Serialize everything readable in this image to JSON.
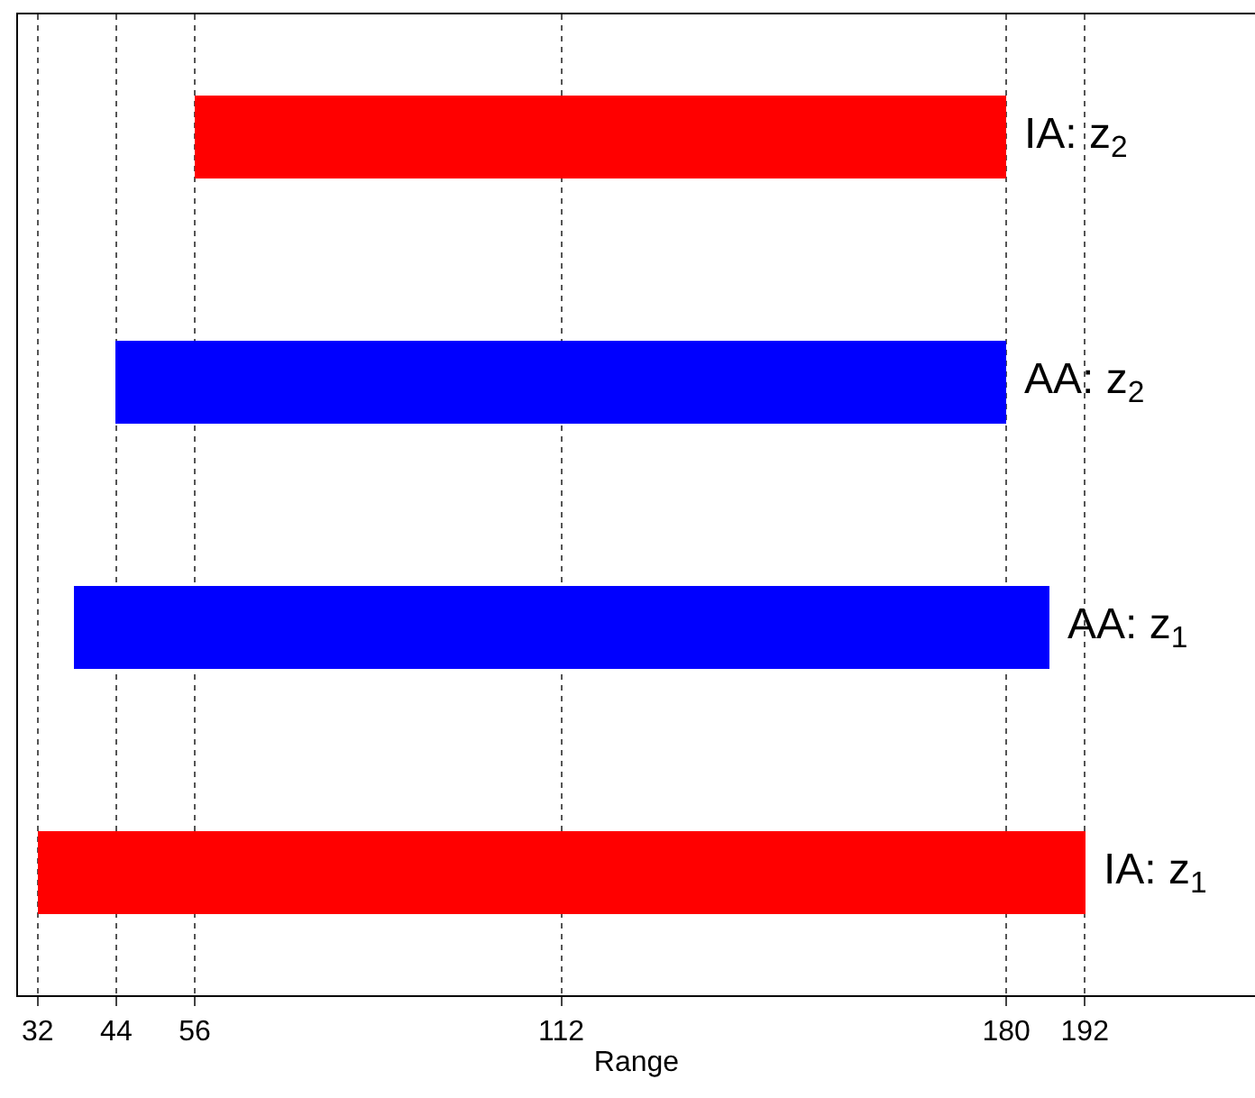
{
  "chart_data": {
    "type": "bar",
    "orientation": "horizontal",
    "xlabel": "Range",
    "categories": [
      "IA: z$_{2}$",
      "AA: z$_{2}$",
      "AA: z$_{1}$",
      "IA: z$_{1}$"
    ],
    "base": [
      56,
      44,
      37.5,
      32
    ],
    "values": [
      124,
      136,
      149,
      160
    ],
    "colors": [
      "#ff0000",
      "#0000ff",
      "#0000ff",
      "#ff0000"
    ],
    "xlim": [
      29,
      218
    ],
    "xticks": [
      32,
      44,
      56,
      112,
      180,
      192
    ],
    "grid": "x",
    "tick_labels": "x"
  }
}
